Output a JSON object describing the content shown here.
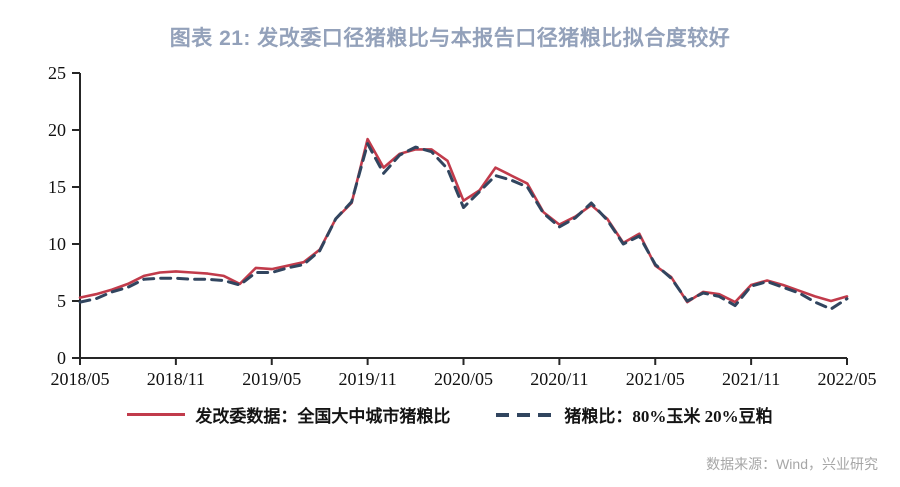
{
  "title": "图表 21: 发改委口径猪粮比与本报告口径猪粮比拟合度较好",
  "source": "数据来源：Wind，兴业研究",
  "colors": {
    "title_text": "#93A1BA",
    "ndrc_line": "#C13B4B",
    "ratio_line": "#31455F",
    "axis": "#262626",
    "source_text": "#A6A6A6",
    "background": "#FFFFFF"
  },
  "chart_data": {
    "type": "line",
    "title": "图表 21: 发改委口径猪粮比与本报告口径猪粮比拟合度较好",
    "xlabel": "",
    "ylabel": "",
    "x_start": "2018/05",
    "x_end": "2022/05",
    "x_frequency": "monthly",
    "xtick_labels": [
      "2018/05",
      "2018/11",
      "2019/05",
      "2019/11",
      "2020/05",
      "2020/11",
      "2021/05",
      "2021/11",
      "2022/05"
    ],
    "xtick_indices": [
      0,
      6,
      12,
      18,
      24,
      30,
      36,
      42,
      48
    ],
    "yticks": [
      0,
      5,
      10,
      15,
      20,
      25
    ],
    "ylim": [
      0,
      25
    ],
    "grid": false,
    "legend_position": "bottom",
    "series": [
      {
        "name": "发改委数据：全国大中城市猪粮比",
        "style": "solid",
        "color": "#C13B4B",
        "values": [
          5.3,
          5.6,
          6.0,
          6.5,
          7.2,
          7.5,
          7.6,
          7.5,
          7.4,
          7.2,
          6.5,
          7.9,
          7.8,
          8.1,
          8.4,
          9.5,
          12.2,
          13.6,
          19.2,
          16.7,
          17.9,
          18.3,
          18.3,
          17.3,
          13.8,
          14.7,
          16.7,
          16.0,
          15.3,
          12.8,
          11.7,
          12.4,
          13.4,
          12.2,
          10.1,
          10.9,
          8.1,
          7.1,
          4.9,
          5.8,
          5.6,
          4.9,
          6.4,
          6.8,
          6.4,
          5.9,
          5.4,
          5.0,
          5.4
        ]
      },
      {
        "name": "猪粮比：80%玉米 20%豆粕",
        "style": "dashed",
        "color": "#31455F",
        "values": [
          4.9,
          5.2,
          5.8,
          6.2,
          6.9,
          7.0,
          7.0,
          6.9,
          6.9,
          6.8,
          6.4,
          7.5,
          7.5,
          7.9,
          8.2,
          9.4,
          12.2,
          13.7,
          18.8,
          16.2,
          17.8,
          18.5,
          18.1,
          16.6,
          13.2,
          14.6,
          16.0,
          15.6,
          15.0,
          12.7,
          11.5,
          12.3,
          13.6,
          12.1,
          10.0,
          10.7,
          8.2,
          7.0,
          5.0,
          5.7,
          5.4,
          4.6,
          6.3,
          6.7,
          6.2,
          5.7,
          4.9,
          4.3,
          5.2
        ]
      }
    ]
  }
}
